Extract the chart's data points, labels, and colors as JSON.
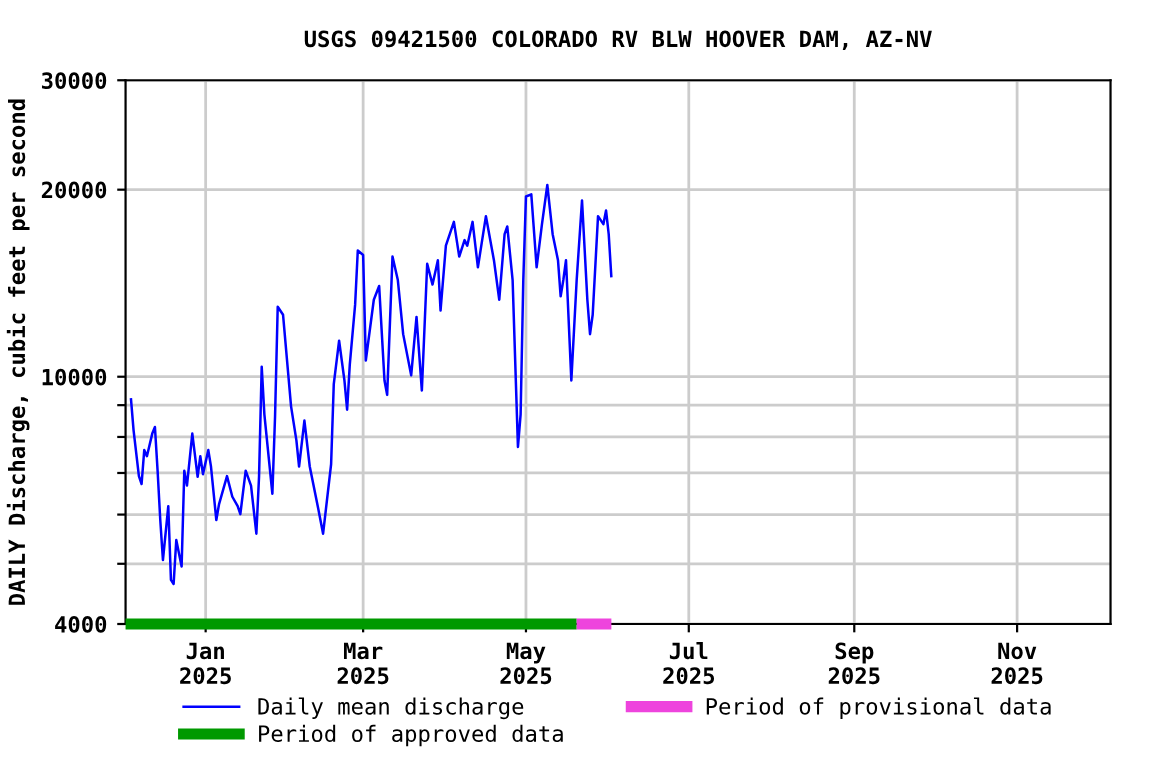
{
  "chart_data": {
    "type": "line",
    "title": "USGS 09421500 COLORADO RV BLW HOOVER DAM, AZ-NV",
    "ylabel": "DAILY Discharge, cubic feet per second",
    "x": [
      "2024-12-04",
      "2024-12-05",
      "2024-12-07",
      "2024-12-08",
      "2024-12-09",
      "2024-12-10",
      "2024-12-12",
      "2024-12-13",
      "2024-12-14",
      "2024-12-15",
      "2024-12-16",
      "2024-12-18",
      "2024-12-19",
      "2024-12-20",
      "2024-12-21",
      "2024-12-23",
      "2024-12-24",
      "2024-12-25",
      "2024-12-27",
      "2024-12-29",
      "2024-12-30",
      "2024-12-31",
      "2025-01-02",
      "2025-01-03",
      "2025-01-05",
      "2025-01-06",
      "2025-01-09",
      "2025-01-11",
      "2025-01-13",
      "2025-01-14",
      "2025-01-16",
      "2025-01-18",
      "2025-01-20",
      "2025-01-21",
      "2025-01-22",
      "2025-01-23",
      "2025-01-26",
      "2025-01-27",
      "2025-01-28",
      "2025-01-30",
      "2025-02-02",
      "2025-02-04",
      "2025-02-05",
      "2025-02-07",
      "2025-02-09",
      "2025-02-12",
      "2025-02-14",
      "2025-02-17",
      "2025-02-18",
      "2025-02-20",
      "2025-02-22",
      "2025-02-23",
      "2025-02-24",
      "2025-02-26",
      "2025-02-27",
      "2025-03-01",
      "2025-03-02",
      "2025-03-05",
      "2025-03-07",
      "2025-03-09",
      "2025-03-10",
      "2025-03-12",
      "2025-03-14",
      "2025-03-16",
      "2025-03-19",
      "2025-03-21",
      "2025-03-23",
      "2025-03-25",
      "2025-03-27",
      "2025-03-29",
      "2025-03-30",
      "2025-04-01",
      "2025-04-04",
      "2025-04-06",
      "2025-04-08",
      "2025-04-09",
      "2025-04-11",
      "2025-04-13",
      "2025-04-16",
      "2025-04-19",
      "2025-04-21",
      "2025-04-23",
      "2025-04-24",
      "2025-04-26",
      "2025-04-28",
      "2025-04-29",
      "2025-04-30",
      "2025-05-01",
      "2025-05-03",
      "2025-05-05",
      "2025-05-07",
      "2025-05-09",
      "2025-05-11",
      "2025-05-13",
      "2025-05-14",
      "2025-05-15",
      "2025-05-16",
      "2025-05-18",
      "2025-05-20",
      "2025-05-22",
      "2025-05-24",
      "2025-05-25",
      "2025-05-26",
      "2025-05-28",
      "2025-05-30",
      "2025-05-31",
      "2025-06-01",
      "2025-06-02"
    ],
    "series": [
      {
        "name": "Daily mean discharge",
        "color": "#0000ff",
        "values": [
          9240,
          8200,
          6920,
          6720,
          7620,
          7450,
          8100,
          8300,
          7060,
          5880,
          5070,
          6190,
          4710,
          4640,
          5460,
          4950,
          7060,
          6680,
          8100,
          6900,
          7450,
          6970,
          7620,
          7170,
          5880,
          6230,
          6920,
          6410,
          6190,
          6010,
          7060,
          6680,
          5590,
          6900,
          10380,
          8700,
          6480,
          8630,
          12960,
          12580,
          8960,
          7900,
          7170,
          8500,
          7170,
          6190,
          5590,
          7230,
          9730,
          11430,
          9860,
          8850,
          10460,
          13060,
          15960,
          15700,
          10620,
          13300,
          14000,
          9860,
          9350,
          15610,
          14310,
          11710,
          10050,
          12480,
          9500,
          15200,
          14070,
          15400,
          12780,
          16250,
          17750,
          15610,
          16590,
          16250,
          17750,
          15000,
          18130,
          15400,
          13300,
          16960,
          17450,
          14310,
          7710,
          8700,
          14310,
          19500,
          19660,
          15000,
          17600,
          20350,
          16960,
          15400,
          13470,
          14310,
          15400,
          9860,
          14310,
          19220,
          13300,
          11710,
          12580,
          18130,
          17600,
          18520,
          16960,
          14450
        ]
      },
      {
        "name": "Period of approved data",
        "color": "#009900",
        "x": [
          "2024-12-02",
          "2025-05-20"
        ],
        "values": [
          4000,
          4000
        ]
      },
      {
        "name": "Period of provisional data",
        "color": "#ee44dd",
        "x": [
          "2025-05-20",
          "2025-06-02"
        ],
        "values": [
          4000,
          4000
        ]
      }
    ],
    "log": "y",
    "ylim": [
      4000,
      30000
    ],
    "yticks": [
      4000,
      {
        "value": 5000,
        "label": null
      },
      {
        "value": 6000,
        "label": null
      },
      {
        "value": 7000,
        "label": null
      },
      {
        "value": 8000,
        "label": null
      },
      {
        "value": 9000,
        "label": null
      },
      10000,
      20000,
      30000
    ],
    "xlim": [
      "2024-12-02",
      "2025-12-06"
    ],
    "xticks": [
      {
        "value": "2025-01-01",
        "label": "Jan\n2025"
      },
      {
        "value": "2025-03-01",
        "label": "Mar\n2025"
      },
      {
        "value": "2025-05-01",
        "label": "May\n2025"
      },
      {
        "value": "2025-07-01",
        "label": "Jul\n2025"
      },
      {
        "value": "2025-09-01",
        "label": "Sep\n2025"
      },
      {
        "value": "2025-11-01",
        "label": "Nov\n2025"
      }
    ],
    "grid": true,
    "legend": "bottom"
  }
}
